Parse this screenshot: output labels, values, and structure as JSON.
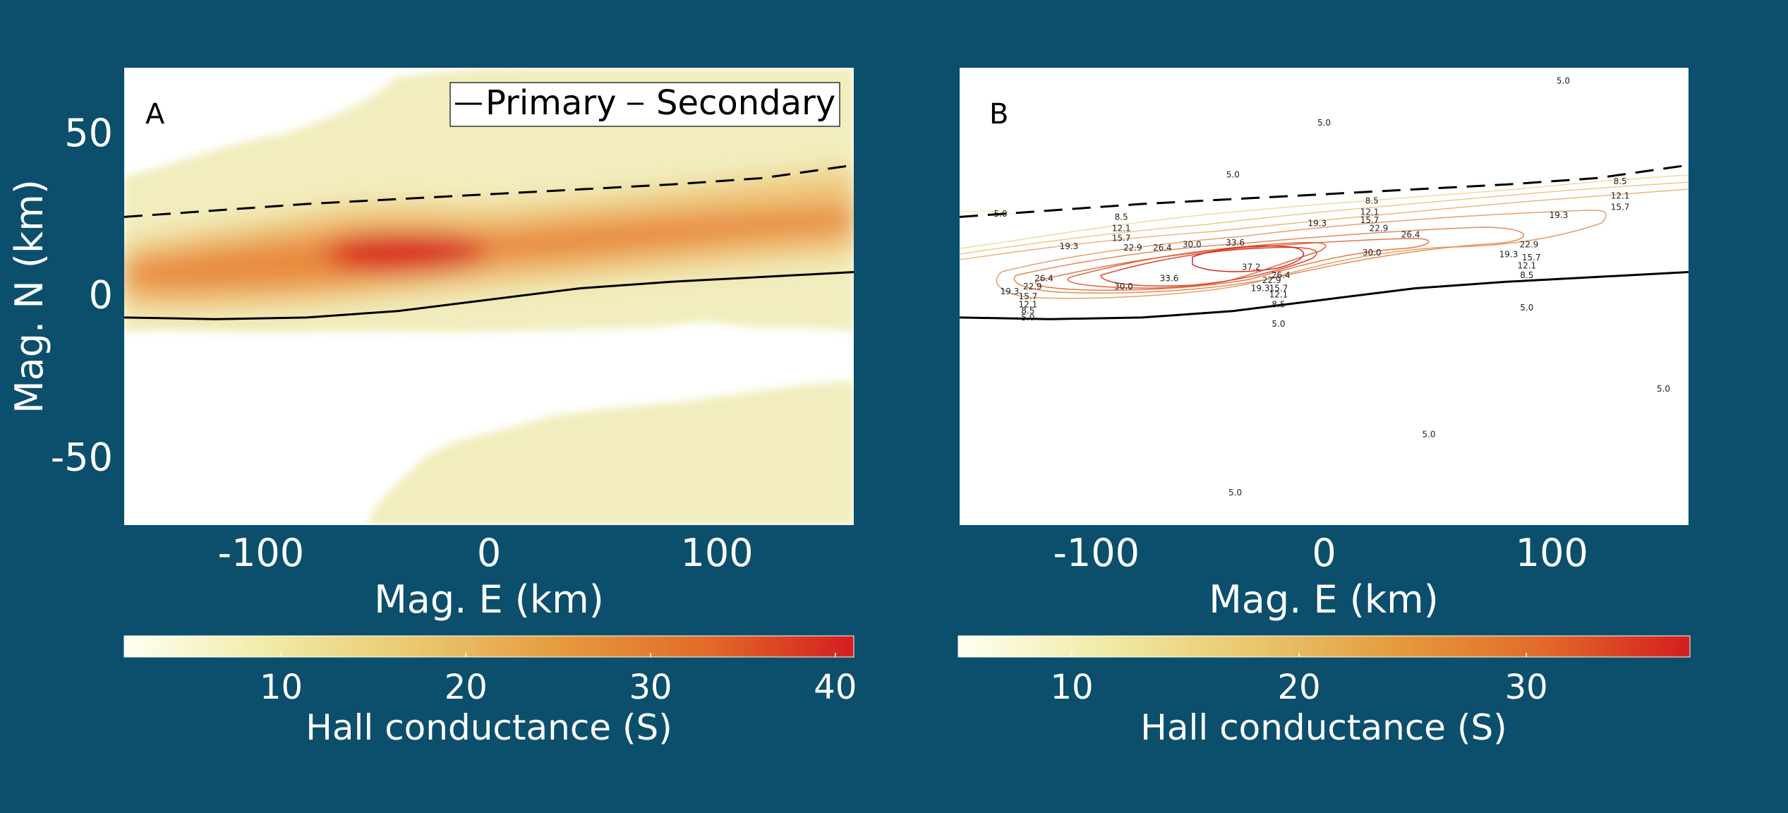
{
  "background_color": "#0b4f6c",
  "chart_data": [
    {
      "type": "heatmap",
      "panel_label": "A",
      "xlabel": "Mag. E (km)",
      "ylabel": "Mag. N (km)",
      "xlim": [
        -160,
        160
      ],
      "ylim": [
        -71,
        70
      ],
      "xticks": [
        -100,
        0,
        100
      ],
      "xtick_labels": [
        "-100",
        "0",
        "100"
      ],
      "yticks": [
        50,
        0,
        -50
      ],
      "ytick_labels": [
        "50",
        "0",
        "-50"
      ],
      "grid": false,
      "legend": {
        "placement": "top-right",
        "entries": [
          {
            "label": "Primary",
            "style": "solid"
          },
          {
            "label": "Secondary",
            "style": "dashed"
          }
        ]
      },
      "colorbar": {
        "label": "Hall conductance (S)",
        "range": [
          1.5,
          41
        ],
        "ticks": [
          10,
          20,
          30,
          40
        ],
        "tick_labels": [
          "10",
          "20",
          "30",
          "40"
        ],
        "colors": [
          "#fffff2",
          "#f0eba6",
          "#e9c86e",
          "#e69a3e",
          "#e26a28",
          "#d41d20"
        ]
      },
      "field_description": {
        "band_center_north_km": [
          [
            -160,
            8
          ],
          [
            -80,
            10
          ],
          [
            0,
            14
          ],
          [
            80,
            19
          ],
          [
            160,
            22
          ]
        ],
        "peak": {
          "east_km": -40,
          "north_km": 12,
          "value_S": 40
        },
        "background_value_S": 2
      },
      "series": [
        {
          "name": "Primary",
          "style": "solid",
          "x": [
            -160,
            -120,
            -80,
            -40,
            0,
            40,
            80,
            120,
            160
          ],
          "y": [
            -7,
            -7.5,
            -7,
            -5,
            -1.5,
            2,
            4,
            5.5,
            7
          ]
        },
        {
          "name": "Secondary",
          "style": "dashed",
          "x": [
            -160,
            -120,
            -80,
            -40,
            0,
            40,
            80,
            120,
            160
          ],
          "y": [
            24,
            26,
            28,
            29.5,
            31,
            32.5,
            34,
            36,
            40
          ]
        }
      ]
    },
    {
      "type": "contour",
      "panel_label": "B",
      "xlabel": "Mag. E (km)",
      "xlim": [
        -160,
        160
      ],
      "ylim": [
        -71,
        70
      ],
      "xticks": [
        -100,
        0,
        100
      ],
      "xtick_labels": [
        "-100",
        "0",
        "100"
      ],
      "grid": false,
      "contour_levels": [
        5.0,
        8.5,
        12.1,
        15.7,
        19.3,
        22.9,
        26.4,
        30.0,
        33.6,
        37.2
      ],
      "colorbar": {
        "label": "Hall conductance (S)",
        "range": [
          5,
          37.2
        ],
        "ticks": [
          10,
          20,
          30
        ],
        "tick_labels": [
          "10",
          "20",
          "30"
        ],
        "colors": [
          "#fffff2",
          "#f0eba6",
          "#e9c86e",
          "#e69a3e",
          "#e26a28",
          "#d41d20"
        ]
      },
      "contour_labels": [
        {
          "text": "5.0",
          "x": -142,
          "y": 25
        },
        {
          "text": "5.0",
          "x": 0,
          "y": 53
        },
        {
          "text": "5.0",
          "x": -40,
          "y": 37
        },
        {
          "text": "5.0",
          "x": 105,
          "y": 66
        },
        {
          "text": "5.0",
          "x": 89,
          "y": -4
        },
        {
          "text": "5.0",
          "x": -20,
          "y": -9
        },
        {
          "text": "5.0",
          "x": 149,
          "y": -29
        },
        {
          "text": "5.0",
          "x": 46,
          "y": -43
        },
        {
          "text": "5.0",
          "x": -39,
          "y": -61
        },
        {
          "text": "5.0",
          "x": -130,
          "y": -7
        },
        {
          "text": "8.5",
          "x": -89,
          "y": 24
        },
        {
          "text": "8.5",
          "x": 21,
          "y": 29
        },
        {
          "text": "8.5",
          "x": 130,
          "y": 35
        },
        {
          "text": "8.5",
          "x": 89,
          "y": 6
        },
        {
          "text": "8.5",
          "x": -20,
          "y": -3
        },
        {
          "text": "8.5",
          "x": -130,
          "y": -5
        },
        {
          "text": "12.1",
          "x": -89,
          "y": 20.5
        },
        {
          "text": "12.1",
          "x": 20,
          "y": 25.5
        },
        {
          "text": "12.1",
          "x": 130,
          "y": 30.5
        },
        {
          "text": "12.1",
          "x": 89,
          "y": 9
        },
        {
          "text": "12.1",
          "x": -20,
          "y": 0
        },
        {
          "text": "12.1",
          "x": -130,
          "y": -3
        },
        {
          "text": "15.7",
          "x": -89,
          "y": 17.5
        },
        {
          "text": "15.7",
          "x": 20,
          "y": 23
        },
        {
          "text": "15.7",
          "x": 130,
          "y": 27
        },
        {
          "text": "15.7",
          "x": 91,
          "y": 11.5
        },
        {
          "text": "15.7",
          "x": -20,
          "y": 2
        },
        {
          "text": "15.7",
          "x": -130,
          "y": -0.5
        },
        {
          "text": "19.3",
          "x": -112,
          "y": 15
        },
        {
          "text": "19.3",
          "x": -3,
          "y": 22
        },
        {
          "text": "19.3",
          "x": 103,
          "y": 24.5
        },
        {
          "text": "19.3",
          "x": 81,
          "y": 12.5
        },
        {
          "text": "19.3",
          "x": -28,
          "y": 2
        },
        {
          "text": "19.3",
          "x": -138,
          "y": 1
        },
        {
          "text": "22.9",
          "x": -84,
          "y": 14.5
        },
        {
          "text": "22.9",
          "x": 24,
          "y": 20.5
        },
        {
          "text": "22.9",
          "x": 90,
          "y": 15.5
        },
        {
          "text": "22.9",
          "x": -23,
          "y": 4.5
        },
        {
          "text": "22.9",
          "x": -128,
          "y": 2.5
        },
        {
          "text": "26.4",
          "x": -71,
          "y": 14.5
        },
        {
          "text": "26.4",
          "x": 38,
          "y": 18.5
        },
        {
          "text": "26.4",
          "x": -19,
          "y": 6
        },
        {
          "text": "26.4",
          "x": -123,
          "y": 5
        },
        {
          "text": "30.0",
          "x": -58,
          "y": 15.5
        },
        {
          "text": "30.0",
          "x": 21,
          "y": 13
        },
        {
          "text": "30.0",
          "x": -88,
          "y": 2.5
        },
        {
          "text": "33.6",
          "x": -39,
          "y": 16
        },
        {
          "text": "33.6",
          "x": -68,
          "y": 5
        },
        {
          "text": "37.2",
          "x": -32,
          "y": 8.5
        }
      ],
      "series": [
        {
          "name": "Primary",
          "style": "solid",
          "x": [
            -160,
            -120,
            -80,
            -40,
            0,
            40,
            80,
            120,
            160
          ],
          "y": [
            -7,
            -7.5,
            -7,
            -5,
            -1.5,
            2,
            4,
            5.5,
            7
          ]
        },
        {
          "name": "Secondary",
          "style": "dashed",
          "x": [
            -160,
            -120,
            -80,
            -40,
            0,
            40,
            80,
            120,
            160
          ],
          "y": [
            24,
            26,
            28,
            29.5,
            31,
            32.5,
            34,
            36,
            40
          ]
        }
      ]
    }
  ]
}
